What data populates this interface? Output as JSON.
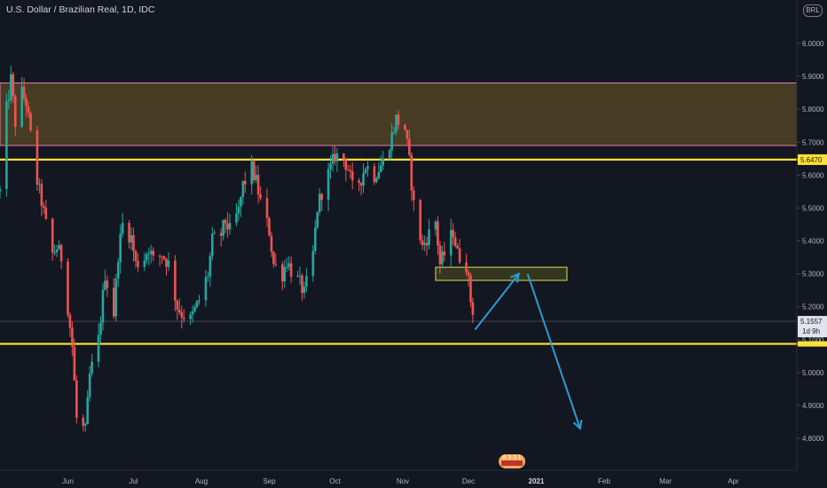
{
  "header": {
    "symbol_title": "U.S. Dollar / Brazilian Real, 1D, IDC",
    "currency_badge": "BRL"
  },
  "colors": {
    "background": "#131722",
    "up_candle": "#26a69a",
    "down_candle": "#ef5350",
    "level_line": "#ffe135",
    "resistance_zone_fill": "#4a3d24",
    "resistance_zone_border": "#e57fa8",
    "small_zone_fill": "#3a3a20",
    "small_zone_border": "#d4e157",
    "projection_arrow": "#2b9bd5",
    "axis_text": "#b2b5be",
    "current_price_bg": "#e0e3eb"
  },
  "chart_data": {
    "type": "candlestick",
    "title": "U.S. Dollar / Brazilian Real, 1D, IDC",
    "y_axis": {
      "ticks": [
        "6.0000",
        "5.9000",
        "5.8000",
        "5.7000",
        "5.6000",
        "5.5000",
        "5.4000",
        "5.3000",
        "5.2000",
        "5.1000",
        "5.0000",
        "4.9000",
        "4.8000"
      ],
      "range": [
        4.73,
        6.13
      ],
      "position": "right"
    },
    "x_axis": {
      "ticks": [
        "Jun",
        "Jul",
        "Aug",
        "Sep",
        "Oct",
        "Nov",
        "Dec",
        "2021",
        "Feb",
        "Mar",
        "Apr"
      ],
      "bold_ticks": [
        "2021"
      ]
    },
    "grid": false,
    "price_path": [
      [
        "2020-05-01",
        5.55
      ],
      [
        "2020-05-04",
        5.8
      ],
      [
        "2020-05-06",
        5.89
      ],
      [
        "2020-05-08",
        5.76
      ],
      [
        "2020-05-11",
        5.85
      ],
      [
        "2020-05-13",
        5.82
      ],
      [
        "2020-05-15",
        5.72
      ],
      [
        "2020-05-18",
        5.58
      ],
      [
        "2020-05-20",
        5.52
      ],
      [
        "2020-05-22",
        5.45
      ],
      [
        "2020-05-25",
        5.36
      ],
      [
        "2020-05-27",
        5.38
      ],
      [
        "2020-05-29",
        5.35
      ],
      [
        "2020-06-01",
        5.2
      ],
      [
        "2020-06-03",
        5.08
      ],
      [
        "2020-06-05",
        4.86
      ],
      [
        "2020-06-09",
        4.82
      ],
      [
        "2020-06-11",
        4.99
      ],
      [
        "2020-06-15",
        5.1
      ],
      [
        "2020-06-18",
        5.3
      ],
      [
        "2020-06-22",
        5.18
      ],
      [
        "2020-06-24",
        5.36
      ],
      [
        "2020-06-26",
        5.45
      ],
      [
        "2020-06-30",
        5.41
      ],
      [
        "2020-07-02",
        5.33
      ],
      [
        "2020-07-06",
        5.35
      ],
      [
        "2020-07-08",
        5.38
      ],
      [
        "2020-07-10",
        5.34
      ],
      [
        "2020-07-14",
        5.36
      ],
      [
        "2020-07-17",
        5.33
      ],
      [
        "2020-07-21",
        5.2
      ],
      [
        "2020-07-23",
        5.18
      ],
      [
        "2020-07-27",
        5.16
      ],
      [
        "2020-07-29",
        5.19
      ],
      [
        "2020-07-31",
        5.22
      ],
      [
        "2020-08-04",
        5.3
      ],
      [
        "2020-08-06",
        5.4
      ],
      [
        "2020-08-10",
        5.42
      ],
      [
        "2020-08-12",
        5.46
      ],
      [
        "2020-08-14",
        5.43
      ],
      [
        "2020-08-18",
        5.49
      ],
      [
        "2020-08-20",
        5.57
      ],
      [
        "2020-08-24",
        5.62
      ],
      [
        "2020-08-26",
        5.58
      ],
      [
        "2020-08-28",
        5.52
      ],
      [
        "2020-09-01",
        5.43
      ],
      [
        "2020-09-03",
        5.33
      ],
      [
        "2020-09-07",
        5.3
      ],
      [
        "2020-09-09",
        5.34
      ],
      [
        "2020-09-11",
        5.31
      ],
      [
        "2020-09-15",
        5.27
      ],
      [
        "2020-09-17",
        5.24
      ],
      [
        "2020-09-21",
        5.36
      ],
      [
        "2020-09-23",
        5.5
      ],
      [
        "2020-09-25",
        5.55
      ],
      [
        "2020-09-29",
        5.62
      ],
      [
        "2020-10-01",
        5.66
      ],
      [
        "2020-10-05",
        5.65
      ],
      [
        "2020-10-07",
        5.62
      ],
      [
        "2020-10-09",
        5.56
      ],
      [
        "2020-10-13",
        5.59
      ],
      [
        "2020-10-15",
        5.63
      ],
      [
        "2020-10-19",
        5.6
      ],
      [
        "2020-10-21",
        5.62
      ],
      [
        "2020-10-23",
        5.64
      ],
      [
        "2020-10-27",
        5.72
      ],
      [
        "2020-10-29",
        5.77
      ],
      [
        "2020-11-02",
        5.74
      ],
      [
        "2020-11-04",
        5.64
      ],
      [
        "2020-11-06",
        5.51
      ],
      [
        "2020-11-10",
        5.38
      ],
      [
        "2020-11-12",
        5.41
      ],
      [
        "2020-11-16",
        5.46
      ],
      [
        "2020-11-18",
        5.33
      ],
      [
        "2020-11-20",
        5.36
      ],
      [
        "2020-11-24",
        5.43
      ],
      [
        "2020-11-26",
        5.36
      ],
      [
        "2020-11-30",
        5.33
      ],
      [
        "2020-12-02",
        5.22
      ],
      [
        "2020-12-04",
        5.16
      ]
    ],
    "horizontal_levels": [
      {
        "price": 5.647,
        "label": "5.6470"
      },
      {
        "price": 5.087
      }
    ],
    "zones": [
      {
        "name": "resistance-zone",
        "from_date": "2020-05-01",
        "to_date": "2021-04-30",
        "low": 5.69,
        "high": 5.88
      },
      {
        "name": "retest-zone",
        "from_date": "2020-11-16",
        "to_date": "2021-01-15",
        "low": 5.28,
        "high": 5.32
      }
    ],
    "projection": [
      [
        "2020-12-04",
        5.13
      ],
      [
        "2020-12-24",
        5.3
      ],
      [
        "2020-12-28",
        5.3
      ],
      [
        "2021-01-21",
        4.83
      ]
    ],
    "current_price": {
      "label": "5.1557",
      "value": 5.1557,
      "countdown": "1d 9h"
    },
    "x_domain": [
      "2020-05-01",
      "2021-04-30"
    ]
  },
  "footer": {
    "badge_text": "8 3 3 1"
  }
}
